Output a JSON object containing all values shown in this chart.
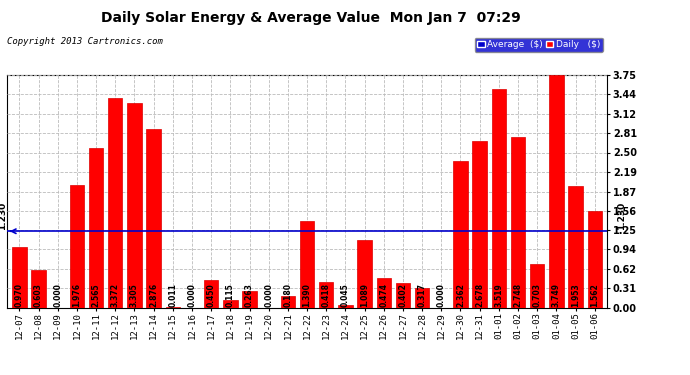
{
  "title": "Daily Solar Energy & Average Value  Mon Jan 7  07:29",
  "copyright": "Copyright 2013 Cartronics.com",
  "categories": [
    "12-07",
    "12-08",
    "12-09",
    "12-10",
    "12-11",
    "12-12",
    "12-13",
    "12-14",
    "12-15",
    "12-16",
    "12-17",
    "12-18",
    "12-19",
    "12-20",
    "12-21",
    "12-22",
    "12-23",
    "12-24",
    "12-25",
    "12-26",
    "12-27",
    "12-28",
    "12-29",
    "12-30",
    "12-31",
    "01-01",
    "01-02",
    "01-03",
    "01-04",
    "01-05",
    "01-06"
  ],
  "values": [
    0.97,
    0.603,
    0.0,
    1.976,
    2.565,
    3.372,
    3.305,
    2.876,
    0.011,
    0.0,
    0.45,
    0.115,
    0.263,
    0.0,
    0.18,
    1.39,
    0.418,
    0.045,
    1.089,
    0.474,
    0.402,
    0.317,
    0.0,
    2.362,
    2.678,
    3.519,
    2.748,
    0.703,
    3.749,
    1.953,
    1.562
  ],
  "average": 1.23,
  "bar_color": "#ff0000",
  "bar_edge_color": "#dd0000",
  "avg_line_color": "#0000cc",
  "background_color": "#ffffff",
  "plot_bg_color": "#ffffff",
  "grid_color": "#bbbbbb",
  "ylim": [
    0.0,
    3.75
  ],
  "yticks": [
    0.0,
    0.31,
    0.62,
    0.94,
    1.25,
    1.56,
    1.87,
    2.19,
    2.5,
    2.81,
    3.12,
    3.44,
    3.75
  ],
  "legend_avg_color": "#0000cc",
  "legend_daily_color": "#ff0000",
  "avg_label": "Average  ($)",
  "daily_label": "Daily   ($)"
}
